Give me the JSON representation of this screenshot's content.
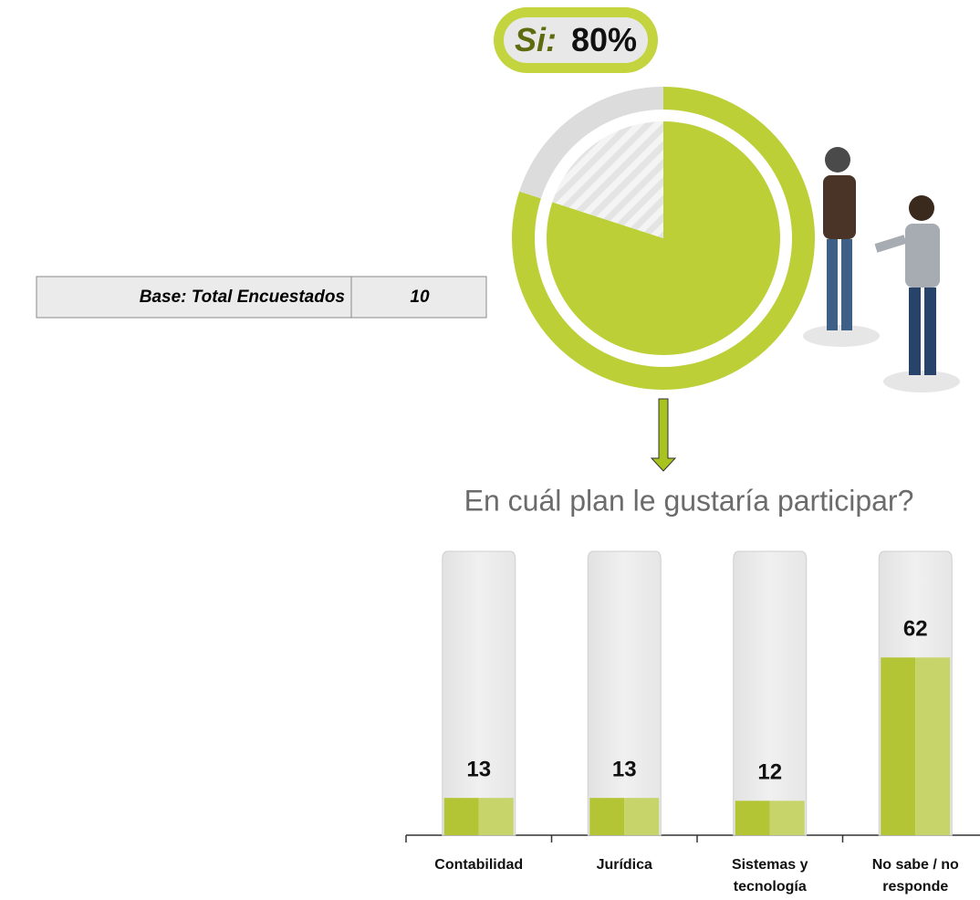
{
  "base": {
    "label": "Base: Total Encuestados",
    "value": "10"
  },
  "chart_data": [
    {
      "type": "pie",
      "categories": [
        "Si:",
        null
      ],
      "values": [
        80,
        20
      ],
      "value_labels": [
        "80%",
        null
      ],
      "colors": [
        "#bccf37",
        "#dcdcdc"
      ]
    },
    {
      "type": "bar",
      "title": "En cuál plan le gustaría participar?",
      "categories": [
        "Contabilidad",
        "Jurídica",
        "Sistemas y tecnología",
        "No sabe / no responde"
      ],
      "values": [
        13,
        13,
        12,
        62
      ],
      "ylim": [
        0,
        100
      ],
      "colors": [
        "#b3c534",
        "#c6d46a"
      ]
    }
  ]
}
